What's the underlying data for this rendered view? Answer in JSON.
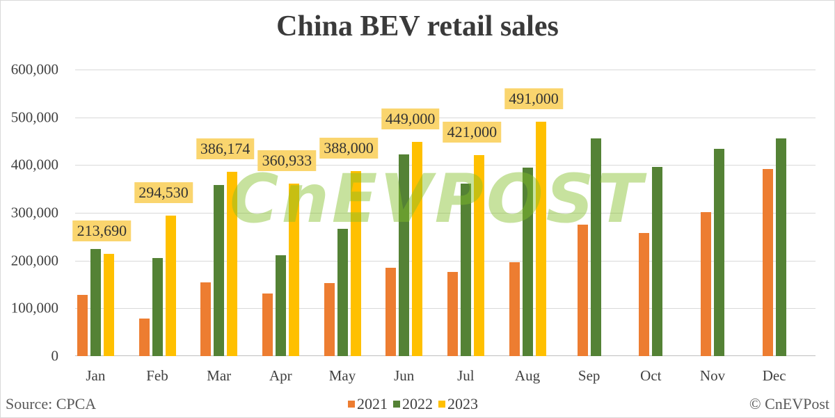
{
  "chart_data": {
    "type": "bar",
    "title": "China BEV retail sales",
    "xlabel": "",
    "ylabel": "",
    "ylim": [
      0,
      600000
    ],
    "yticks": [
      "0",
      "100,000",
      "200,000",
      "300,000",
      "400,000",
      "500,000",
      "600,000"
    ],
    "grid": true,
    "legend_position": "bottom",
    "categories": [
      "Jan",
      "Feb",
      "Mar",
      "Apr",
      "May",
      "Jun",
      "Jul",
      "Aug",
      "Sep",
      "Oct",
      "Nov",
      "Dec"
    ],
    "series": [
      {
        "name": "2021",
        "color": "#ed7d31",
        "values": [
          128000,
          79000,
          154000,
          131000,
          153000,
          185000,
          176000,
          197000,
          275000,
          258000,
          301000,
          392000
        ]
      },
      {
        "name": "2022",
        "color": "#548235",
        "values": [
          224000,
          205000,
          358000,
          211000,
          266000,
          422000,
          361000,
          395000,
          456000,
          396000,
          434000,
          456000
        ]
      },
      {
        "name": "2023",
        "color": "#ffc000",
        "values": [
          213690,
          294530,
          386174,
          360933,
          388000,
          449000,
          421000,
          491000,
          null,
          null,
          null,
          null
        ]
      }
    ],
    "data_labels": {
      "2023": [
        "213,690",
        "294,530",
        "386,174",
        "360,933",
        "388,000",
        "449,000",
        "421,000",
        "491,000"
      ]
    }
  },
  "footer": {
    "source": "Source: CPCA",
    "copyright": "© CnEVPost"
  },
  "watermark": "CnEVPOST",
  "colors": {
    "label_bg": "#fad56e",
    "grid": "#d9d9d9"
  }
}
